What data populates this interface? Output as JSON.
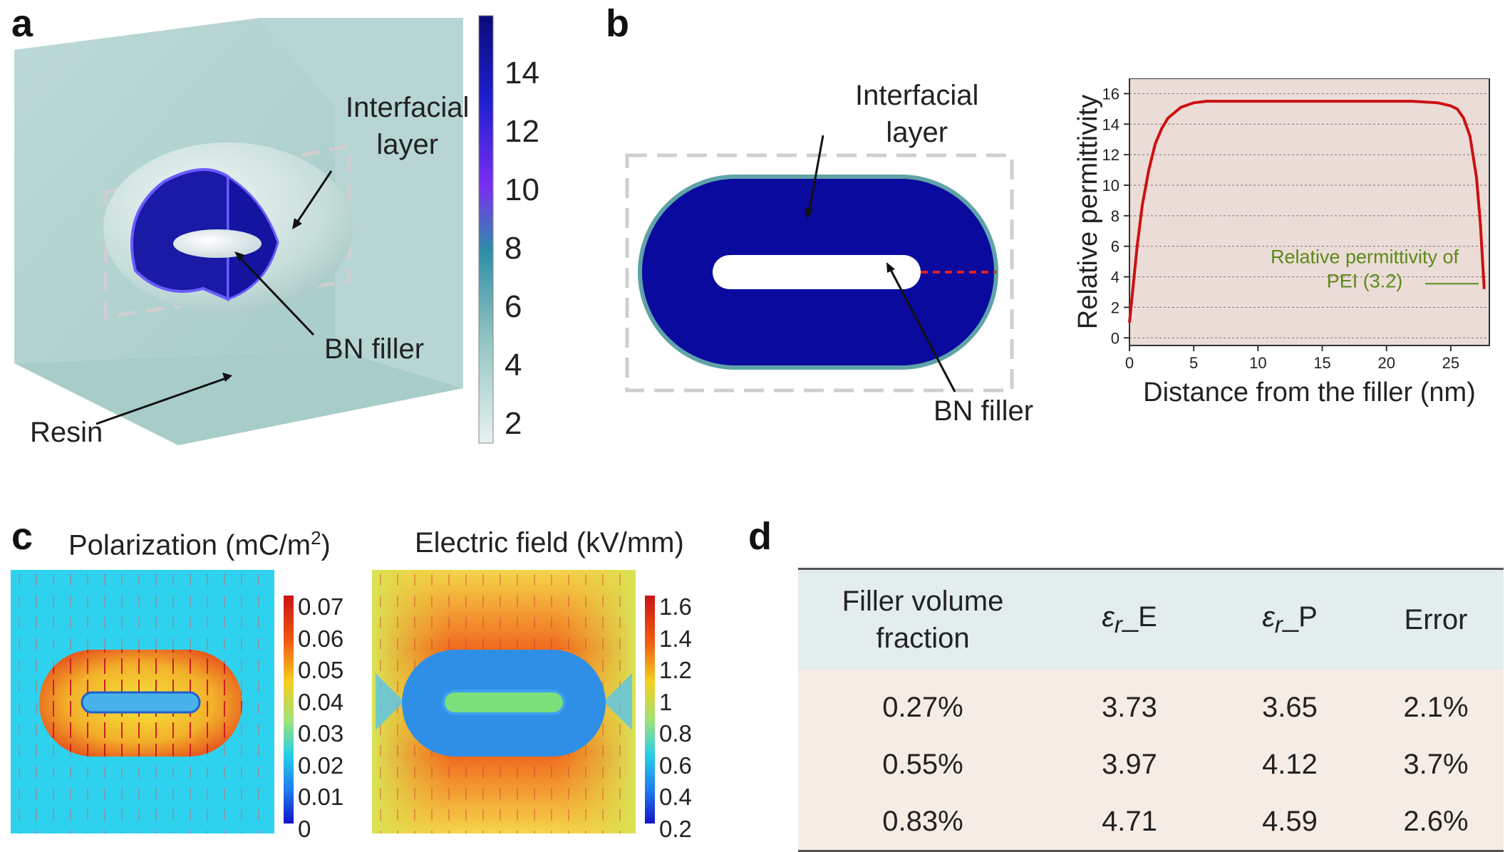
{
  "panels": {
    "a": {
      "label": "a",
      "annotations": {
        "interfacial": "Interfacial\nlayer",
        "bn": "BN filler",
        "resin": "Resin"
      },
      "colorbar": {
        "ticks": [
          "14",
          "12",
          "10",
          "8",
          "6",
          "4",
          "2"
        ]
      }
    },
    "b": {
      "label": "b",
      "annotations": {
        "interfacial": "Interfacial\nlayer",
        "bn": "BN filler"
      },
      "chart_data": {
        "type": "line",
        "xlabel": "Distance from the filler (nm)",
        "ylabel": "Relative permittivity",
        "xlim": [
          0,
          28
        ],
        "ylim": [
          -0.5,
          17
        ],
        "xticks": [
          "0",
          "5",
          "10",
          "15",
          "20",
          "25"
        ],
        "yticks": [
          "0",
          "2",
          "4",
          "6",
          "8",
          "10",
          "12",
          "14",
          "16"
        ],
        "grid": true,
        "annotation": "Relative permittivity of\nPEI (3.2)",
        "series": [
          {
            "color": "#cc1111",
            "x": [
              0,
              0.3,
              0.6,
              1,
              1.5,
              2,
              2.5,
              3,
              4,
              5,
              6,
              8,
              10,
              15,
              20,
              22,
              24,
              25,
              25.5,
              26,
              26.5,
              27,
              27.3,
              27.6
            ],
            "y": [
              1.0,
              3.5,
              6.0,
              8.7,
              11.0,
              12.7,
              13.7,
              14.4,
              15.1,
              15.4,
              15.5,
              15.5,
              15.5,
              15.5,
              15.5,
              15.5,
              15.4,
              15.2,
              15.0,
              14.4,
              13.2,
              10.5,
              7.5,
              3.2
            ]
          }
        ]
      }
    },
    "c": {
      "label": "c",
      "polarization": {
        "title": "Polarization (mC/m",
        "sup": "2",
        "title_end": ")",
        "ticks": [
          "0.07",
          "0.06",
          "0.05",
          "0.04",
          "0.03",
          "0.02",
          "0.01",
          "0"
        ]
      },
      "efield": {
        "title": "Electric field (kV/mm)",
        "ticks": [
          "1.6",
          "1.4",
          "1.2",
          "1",
          "0.8",
          "0.6",
          "0.4",
          "0.2"
        ]
      }
    },
    "d": {
      "label": "d",
      "table": {
        "headers": {
          "fraction": "Filler volume\nfraction",
          "e_sym": "ε",
          "e_sub": "r",
          "e_suffix": "_E",
          "p_sym": "ε",
          "p_sub": "r",
          "p_suffix": "_P",
          "error": "Error"
        },
        "rows": [
          {
            "fraction": "0.27%",
            "e": "3.73",
            "p": "3.65",
            "error": "2.1%"
          },
          {
            "fraction": "0.55%",
            "e": "3.97",
            "p": "4.12",
            "error": "3.7%"
          },
          {
            "fraction": "0.83%",
            "e": "4.71",
            "p": "4.59",
            "error": "2.6%"
          }
        ]
      }
    }
  }
}
